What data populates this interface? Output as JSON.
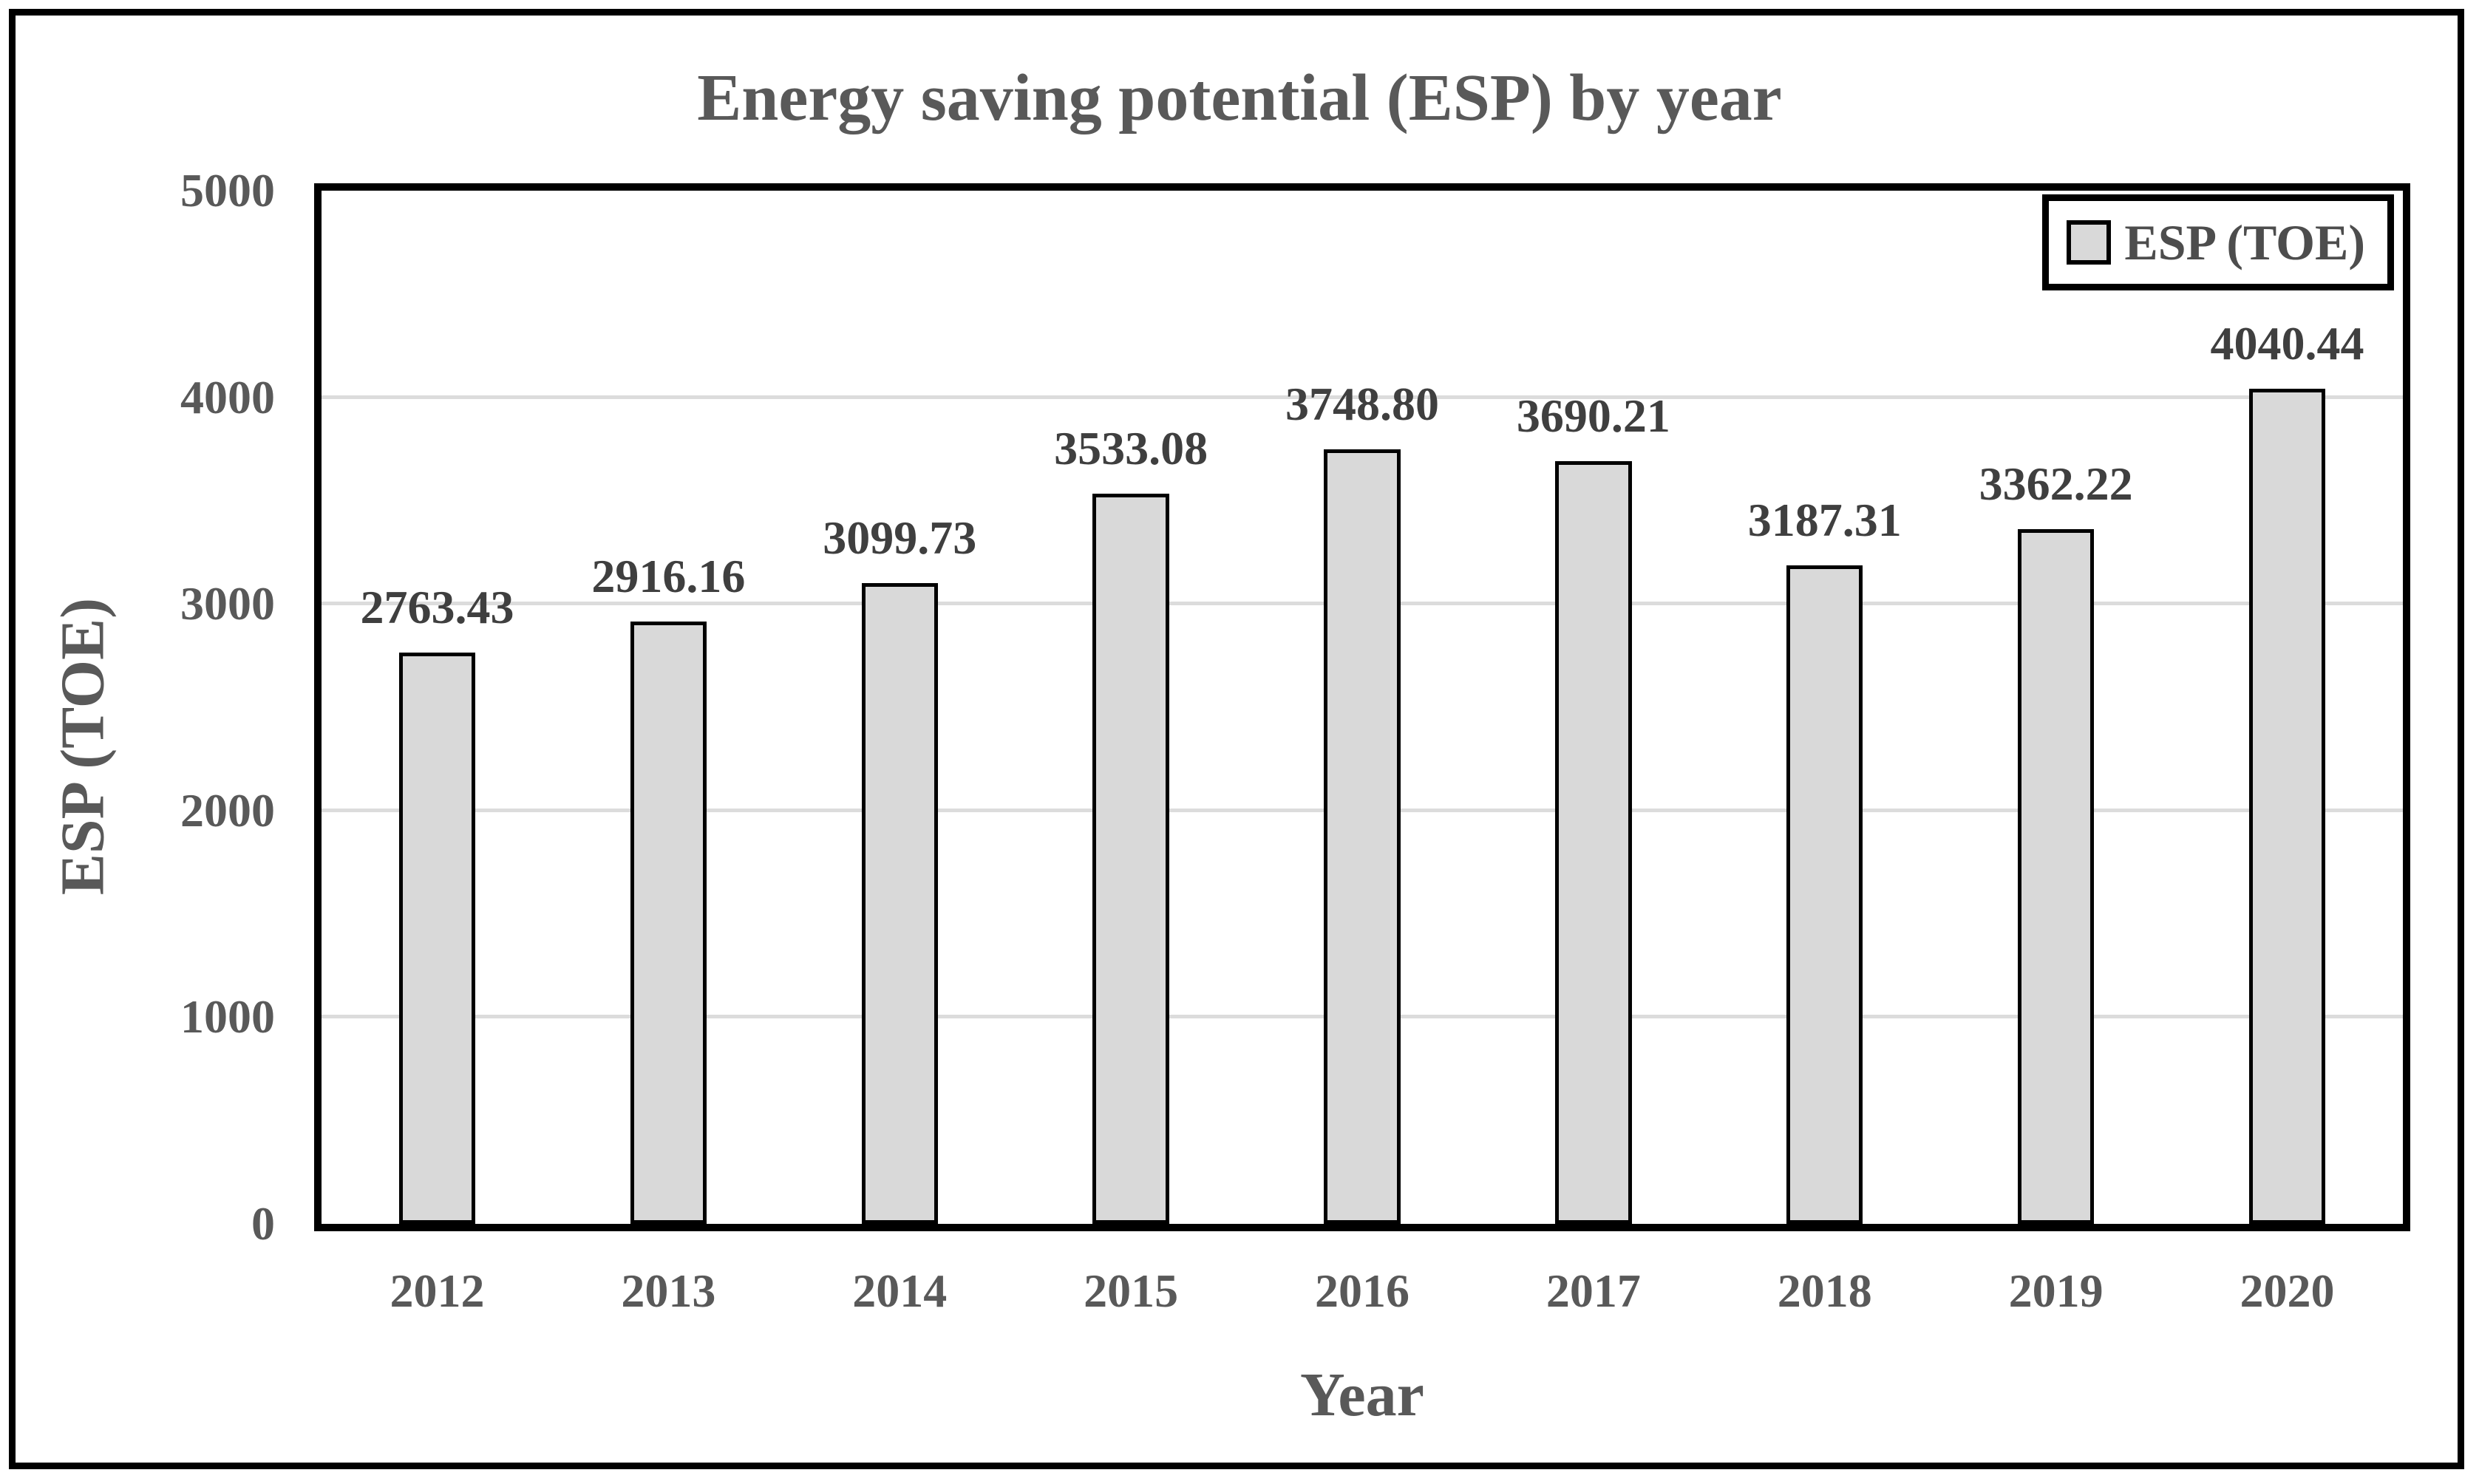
{
  "page": {
    "background": "#ffffff",
    "frame_border_color": "#000000"
  },
  "colors": {
    "bar_fill": "#d9d9d9",
    "bar_border": "#000000",
    "gridline": "#dcdcdc",
    "title_text": "#595959",
    "tick_text": "#595959",
    "data_label_text": "#3f3f3f",
    "plot_border": "#000000"
  },
  "chart_data": {
    "type": "bar",
    "title": "Energy saving potential (ESP) by year",
    "xlabel": "Year",
    "ylabel": "ESP (TOE)",
    "categories": [
      "2012",
      "2013",
      "2014",
      "2015",
      "2016",
      "2017",
      "2018",
      "2019",
      "2020"
    ],
    "series": [
      {
        "name": "ESP (TOE)",
        "values": [
          2763.43,
          2916.16,
          3099.73,
          3533.08,
          3748.8,
          3690.21,
          3187.31,
          3362.22,
          4040.44
        ]
      }
    ],
    "data_labels": [
      "2763.43",
      "2916.16",
      "3099.73",
      "3533.08",
      "3748.80",
      "3690.21",
      "3187.31",
      "3362.22",
      "4040.44"
    ],
    "ylim": [
      0,
      5000
    ],
    "ytick_interval": 1000,
    "yticks": [
      "0",
      "1000",
      "2000",
      "3000",
      "4000",
      "5000"
    ],
    "grid": true,
    "legend": {
      "position": "top-right",
      "entries": [
        "ESP (TOE)"
      ],
      "swatch_color": "#d9d9d9"
    }
  }
}
